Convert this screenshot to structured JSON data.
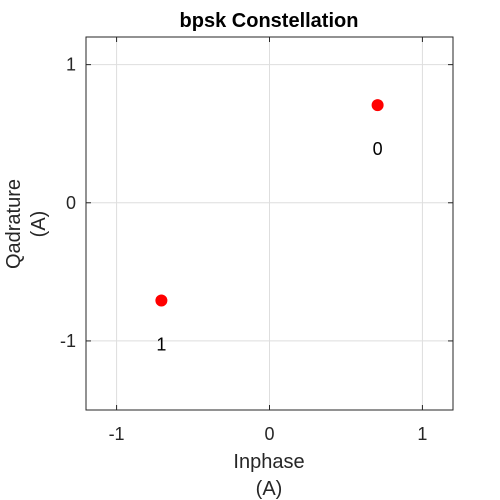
{
  "chart_data": {
    "type": "scatter",
    "title": "bpsk Constellation",
    "xlabel": [
      "Inphase",
      "(A)"
    ],
    "ylabel": [
      "Qadrature",
      "(A)"
    ],
    "xlim": [
      -1.2,
      1.2
    ],
    "ylim": [
      -1.5,
      1.2
    ],
    "xticks": [
      -1,
      0,
      1
    ],
    "xtick_labels": [
      "-1",
      "0",
      "1"
    ],
    "yticks": [
      -1,
      0,
      1
    ],
    "ytick_labels": [
      "-1",
      "0",
      "1"
    ],
    "grid": true,
    "points": [
      {
        "x": 0.707,
        "y": 0.707,
        "label": "0"
      },
      {
        "x": -0.707,
        "y": -0.707,
        "label": "1"
      }
    ],
    "colors": {
      "marker": "#ff0000",
      "grid": "#dedede",
      "axes": "#262626"
    }
  }
}
